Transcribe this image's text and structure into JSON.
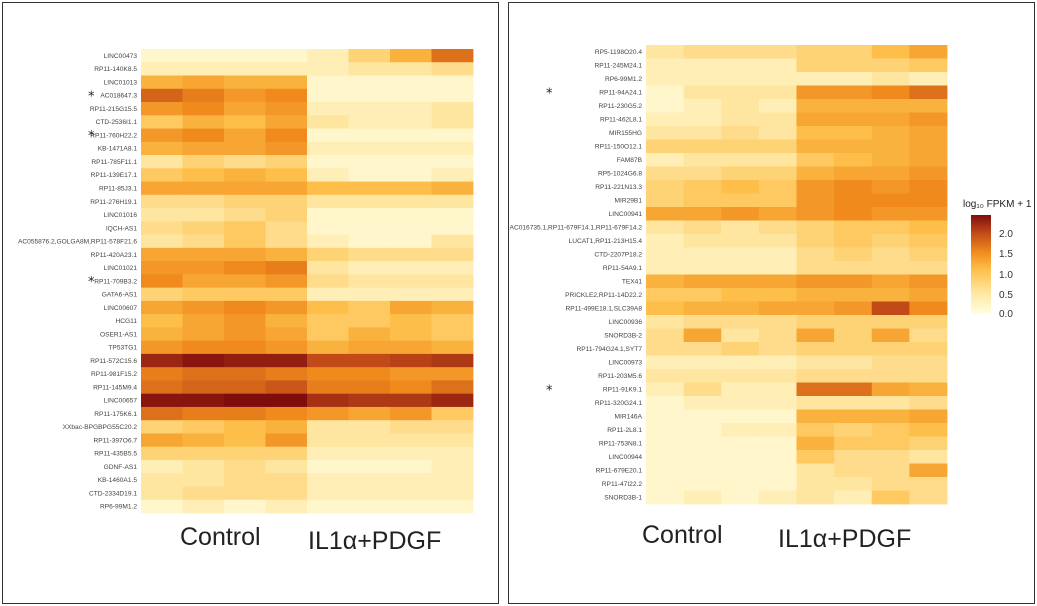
{
  "colors": {
    "low": "#ffffe0",
    "mid": "#fdbf4a",
    "high": "#7f0d0d",
    "border": "#333333"
  },
  "legend": {
    "title": "log₁₀ FPKM + 1",
    "ticks": [
      "2.0",
      "1.5",
      "1.0",
      "0.5",
      "0.0"
    ],
    "tick_values": [
      2.0,
      1.5,
      1.0,
      0.5,
      0.0
    ]
  },
  "left_groups": {
    "control": "Control",
    "treated": "IL1α+PDGF"
  },
  "right_groups": {
    "control": "Control",
    "treated": "IL1α+PDGF"
  },
  "chart_data": [
    {
      "type": "heatmap",
      "title": "",
      "xlabel": "",
      "ylabel": "",
      "value_range": [
        0,
        2.3
      ],
      "columns": 8,
      "column_groups": [
        {
          "name": "Control",
          "columns": [
            1,
            2,
            3,
            4
          ]
        },
        {
          "name": "IL1α+PDGF",
          "columns": [
            5,
            6,
            7,
            8
          ]
        }
      ],
      "rows": [
        {
          "label": "LINC00473",
          "star": false,
          "values": [
            0.1,
            0.1,
            0.1,
            0.1,
            0.2,
            0.5,
            0.8,
            1.3
          ]
        },
        {
          "label": "RP11-140K8.5",
          "star": false,
          "values": [
            0.2,
            0.2,
            0.2,
            0.2,
            0.2,
            0.3,
            0.3,
            0.4
          ]
        },
        {
          "label": "LINC01013",
          "star": false,
          "values": [
            0.8,
            0.9,
            0.8,
            0.8,
            0.1,
            0.1,
            0.1,
            0.1
          ]
        },
        {
          "label": "AC018647.3",
          "star": true,
          "values": [
            1.4,
            1.2,
            1.0,
            1.1,
            0.1,
            0.1,
            0.1,
            0.1
          ]
        },
        {
          "label": "RP11-215G15.5",
          "star": false,
          "values": [
            1.0,
            1.1,
            0.9,
            1.0,
            0.2,
            0.2,
            0.2,
            0.3
          ]
        },
        {
          "label": "CTD-2536I1.1",
          "star": false,
          "values": [
            0.6,
            0.8,
            0.7,
            0.9,
            0.3,
            0.2,
            0.2,
            0.3
          ]
        },
        {
          "label": "RP11-760H22.2",
          "star": true,
          "values": [
            1.0,
            1.1,
            0.9,
            1.1,
            0.1,
            0.1,
            0.1,
            0.1
          ]
        },
        {
          "label": "KB-1471A8.1",
          "star": false,
          "values": [
            0.8,
            0.9,
            0.9,
            1.0,
            0.2,
            0.2,
            0.2,
            0.2
          ]
        },
        {
          "label": "RP11-785F11.1",
          "star": false,
          "values": [
            0.3,
            0.5,
            0.4,
            0.5,
            0.1,
            0.1,
            0.1,
            0.1
          ]
        },
        {
          "label": "RP11-139E17.1",
          "star": false,
          "values": [
            0.6,
            0.7,
            0.8,
            0.7,
            0.2,
            0.1,
            0.1,
            0.2
          ]
        },
        {
          "label": "RP11-85J3.1",
          "star": false,
          "values": [
            0.9,
            0.9,
            0.9,
            0.9,
            0.7,
            0.7,
            0.7,
            0.8
          ]
        },
        {
          "label": "RP11-276H19.1",
          "star": false,
          "values": [
            0.4,
            0.4,
            0.5,
            0.5,
            0.3,
            0.3,
            0.3,
            0.3
          ]
        },
        {
          "label": "LINC01016",
          "star": false,
          "values": [
            0.3,
            0.3,
            0.4,
            0.5,
            0.1,
            0.1,
            0.1,
            0.1
          ]
        },
        {
          "label": "IQCH-AS1",
          "star": false,
          "values": [
            0.4,
            0.5,
            0.6,
            0.4,
            0.1,
            0.1,
            0.1,
            0.1
          ]
        },
        {
          "label": "AC055876.2,GOLGA8M,RP11-578F21.6",
          "star": false,
          "values": [
            0.3,
            0.4,
            0.6,
            0.4,
            0.2,
            0.1,
            0.1,
            0.3
          ]
        },
        {
          "label": "RP11-420A23.1",
          "star": false,
          "values": [
            0.9,
            0.9,
            0.9,
            0.8,
            0.5,
            0.4,
            0.4,
            0.4
          ]
        },
        {
          "label": "LINC01021",
          "star": false,
          "values": [
            1.0,
            1.0,
            1.1,
            1.2,
            0.3,
            0.2,
            0.2,
            0.2
          ]
        },
        {
          "label": "RP11-709B3.2",
          "star": true,
          "values": [
            1.1,
            0.9,
            0.9,
            1.0,
            0.4,
            0.3,
            0.3,
            0.3
          ]
        },
        {
          "label": "GATA6-AS1",
          "star": false,
          "values": [
            0.5,
            0.6,
            0.6,
            0.6,
            0.2,
            0.2,
            0.2,
            0.2
          ]
        },
        {
          "label": "LINC00607",
          "star": false,
          "values": [
            0.9,
            1.0,
            1.1,
            1.0,
            0.7,
            0.6,
            0.9,
            0.8
          ]
        },
        {
          "label": "HCG11",
          "star": false,
          "values": [
            0.7,
            0.9,
            1.0,
            0.8,
            0.6,
            0.6,
            0.7,
            0.6
          ]
        },
        {
          "label": "OSER1-AS1",
          "star": false,
          "values": [
            0.8,
            0.9,
            1.0,
            0.9,
            0.6,
            0.8,
            0.7,
            0.6
          ]
        },
        {
          "label": "TP53TG1",
          "star": false,
          "values": [
            1.0,
            1.1,
            1.1,
            1.0,
            0.8,
            0.9,
            0.9,
            0.8
          ]
        },
        {
          "label": "RP11-572C15.6",
          "star": false,
          "values": [
            2.0,
            2.2,
            2.1,
            2.1,
            1.6,
            1.6,
            1.7,
            1.8
          ]
        },
        {
          "label": "RP11-981F15.2",
          "star": false,
          "values": [
            1.2,
            1.3,
            1.3,
            1.2,
            1.1,
            1.1,
            1.0,
            1.0
          ]
        },
        {
          "label": "RP11-145M9.4",
          "star": false,
          "values": [
            1.3,
            1.4,
            1.4,
            1.5,
            1.2,
            1.2,
            1.1,
            1.3
          ]
        },
        {
          "label": "LINC00657",
          "star": false,
          "values": [
            2.2,
            2.2,
            2.3,
            2.3,
            1.9,
            1.8,
            1.8,
            2.0
          ]
        },
        {
          "label": "RP11-175K6.1",
          "star": false,
          "values": [
            1.3,
            1.2,
            1.2,
            1.1,
            1.0,
            0.9,
            1.0,
            0.6
          ]
        },
        {
          "label": "XXbac-BPGBPG55C20.2",
          "star": false,
          "values": [
            0.5,
            0.6,
            0.7,
            0.8,
            0.3,
            0.3,
            0.4,
            0.4
          ]
        },
        {
          "label": "RP11-397O6.7",
          "star": false,
          "values": [
            0.9,
            0.8,
            0.7,
            1.0,
            0.3,
            0.3,
            0.3,
            0.3
          ]
        },
        {
          "label": "RP11-435B5.5",
          "star": false,
          "values": [
            0.5,
            0.5,
            0.5,
            0.5,
            0.2,
            0.2,
            0.2,
            0.2
          ]
        },
        {
          "label": "GDNF-AS1",
          "star": false,
          "values": [
            0.2,
            0.3,
            0.4,
            0.3,
            0.1,
            0.1,
            0.1,
            0.2
          ]
        },
        {
          "label": "KB-1460A1.5",
          "star": false,
          "values": [
            0.3,
            0.3,
            0.4,
            0.4,
            0.2,
            0.2,
            0.2,
            0.2
          ]
        },
        {
          "label": "CTD-2334D19.1",
          "star": false,
          "values": [
            0.3,
            0.4,
            0.4,
            0.4,
            0.2,
            0.2,
            0.2,
            0.2
          ]
        },
        {
          "label": "RP6-99M1.2",
          "star": false,
          "values": [
            0.1,
            0.2,
            0.1,
            0.2,
            0.1,
            0.1,
            0.1,
            0.1
          ]
        }
      ]
    },
    {
      "type": "heatmap",
      "title": "",
      "xlabel": "",
      "ylabel": "",
      "value_range": [
        0,
        2.3
      ],
      "columns": 8,
      "column_groups": [
        {
          "name": "Control",
          "columns": [
            1,
            2,
            3,
            4
          ]
        },
        {
          "name": "IL1α+PDGF",
          "columns": [
            5,
            6,
            7,
            8
          ]
        }
      ],
      "legend_title": "log₁₀ FPKM + 1",
      "rows": [
        {
          "label": "RP5-1198O20.4",
          "star": false,
          "values": [
            0.3,
            0.4,
            0.4,
            0.4,
            0.5,
            0.5,
            0.7,
            0.9
          ]
        },
        {
          "label": "RP11-245M24.1",
          "star": false,
          "values": [
            0.2,
            0.2,
            0.2,
            0.2,
            0.5,
            0.5,
            0.5,
            0.6
          ]
        },
        {
          "label": "RP6-99M1.2",
          "star": false,
          "values": [
            0.2,
            0.2,
            0.2,
            0.2,
            0.2,
            0.2,
            0.3,
            0.2
          ]
        },
        {
          "label": "RP11-94A24.1",
          "star": true,
          "values": [
            0.1,
            0.3,
            0.3,
            0.3,
            1.0,
            1.0,
            1.1,
            1.3
          ]
        },
        {
          "label": "RP11-230G5.2",
          "star": false,
          "values": [
            0.1,
            0.2,
            0.3,
            0.2,
            0.8,
            0.8,
            0.8,
            0.8
          ]
        },
        {
          "label": "RP11-462L8.1",
          "star": false,
          "values": [
            0.2,
            0.2,
            0.3,
            0.3,
            0.9,
            0.9,
            0.9,
            1.0
          ]
        },
        {
          "label": "MIR155HG",
          "star": false,
          "values": [
            0.3,
            0.3,
            0.4,
            0.3,
            0.7,
            0.7,
            0.8,
            0.9
          ]
        },
        {
          "label": "RP11-150O12.1",
          "star": false,
          "values": [
            0.5,
            0.5,
            0.5,
            0.5,
            0.8,
            0.8,
            0.8,
            0.9
          ]
        },
        {
          "label": "FAM87B",
          "star": false,
          "values": [
            0.2,
            0.3,
            0.3,
            0.3,
            0.6,
            0.7,
            0.8,
            0.9
          ]
        },
        {
          "label": "RP5-1024G6.8",
          "star": false,
          "values": [
            0.4,
            0.4,
            0.5,
            0.5,
            0.8,
            0.9,
            0.9,
            1.0
          ]
        },
        {
          "label": "RP11-221N13.3",
          "star": false,
          "values": [
            0.5,
            0.6,
            0.7,
            0.6,
            1.0,
            1.1,
            1.0,
            1.1
          ]
        },
        {
          "label": "MIR29B1",
          "star": false,
          "values": [
            0.5,
            0.6,
            0.6,
            0.6,
            1.0,
            1.1,
            1.1,
            1.1
          ]
        },
        {
          "label": "LINC00941",
          "star": false,
          "values": [
            0.9,
            0.9,
            1.0,
            0.9,
            1.0,
            1.1,
            1.0,
            1.0
          ]
        },
        {
          "label": "AC016735.1,RP11-679F14.1,RP11-679F14.2",
          "star": false,
          "values": [
            0.3,
            0.4,
            0.3,
            0.4,
            0.5,
            0.6,
            0.6,
            0.7
          ]
        },
        {
          "label": "LUCAT1,RP11-213H15.4",
          "star": false,
          "values": [
            0.2,
            0.3,
            0.3,
            0.3,
            0.5,
            0.6,
            0.5,
            0.6
          ]
        },
        {
          "label": "CTD-2207P18.2",
          "star": false,
          "values": [
            0.2,
            0.2,
            0.2,
            0.2,
            0.4,
            0.5,
            0.4,
            0.5
          ]
        },
        {
          "label": "RP11-54A9.1",
          "star": false,
          "values": [
            0.2,
            0.2,
            0.2,
            0.2,
            0.4,
            0.4,
            0.4,
            0.4
          ]
        },
        {
          "label": "TEX41",
          "star": false,
          "values": [
            0.8,
            0.9,
            0.9,
            0.9,
            1.0,
            1.0,
            0.9,
            1.0
          ]
        },
        {
          "label": "PRICKLE2,RP11-14D22.2",
          "star": false,
          "values": [
            0.6,
            0.6,
            0.7,
            0.7,
            0.8,
            0.8,
            0.8,
            0.9
          ]
        },
        {
          "label": "RP11-499E18.1,SLC39A8",
          "star": false,
          "values": [
            0.7,
            0.8,
            0.8,
            0.9,
            0.9,
            1.0,
            1.6,
            1.1
          ]
        },
        {
          "label": "LINC00936",
          "star": false,
          "values": [
            0.3,
            0.4,
            0.4,
            0.4,
            0.5,
            0.5,
            0.5,
            0.5
          ]
        },
        {
          "label": "SNORD3B-2",
          "star": false,
          "values": [
            0.4,
            0.9,
            0.3,
            0.4,
            0.9,
            0.5,
            0.9,
            0.4
          ]
        },
        {
          "label": "RP11-794G24.1,SYT7",
          "star": false,
          "values": [
            0.4,
            0.4,
            0.5,
            0.4,
            0.5,
            0.5,
            0.5,
            0.5
          ]
        },
        {
          "label": "LINC00973",
          "star": false,
          "values": [
            0.2,
            0.2,
            0.2,
            0.2,
            0.3,
            0.3,
            0.4,
            0.4
          ]
        },
        {
          "label": "RP11-203M5.6",
          "star": false,
          "values": [
            0.3,
            0.3,
            0.3,
            0.3,
            0.4,
            0.4,
            0.4,
            0.4
          ]
        },
        {
          "label": "RP11-91K9.1",
          "star": true,
          "values": [
            0.2,
            0.4,
            0.2,
            0.2,
            1.3,
            1.3,
            0.9,
            0.8
          ]
        },
        {
          "label": "RP11-320G24.1",
          "star": false,
          "values": [
            0.1,
            0.2,
            0.2,
            0.2,
            0.3,
            0.3,
            0.3,
            0.4
          ]
        },
        {
          "label": "MIR146A",
          "star": false,
          "values": [
            0.1,
            0.1,
            0.1,
            0.1,
            0.8,
            0.8,
            0.8,
            0.9
          ]
        },
        {
          "label": "RP11-2L8.1",
          "star": false,
          "values": [
            0.1,
            0.1,
            0.2,
            0.2,
            0.6,
            0.5,
            0.6,
            0.7
          ]
        },
        {
          "label": "RP11-753N8.1",
          "star": false,
          "values": [
            0.1,
            0.1,
            0.1,
            0.1,
            0.8,
            0.6,
            0.6,
            0.5
          ]
        },
        {
          "label": "LINC00944",
          "star": false,
          "values": [
            0.1,
            0.1,
            0.1,
            0.1,
            0.6,
            0.4,
            0.4,
            0.3
          ]
        },
        {
          "label": "RP11-679E20.1",
          "star": false,
          "values": [
            0.1,
            0.1,
            0.1,
            0.1,
            0.3,
            0.4,
            0.4,
            0.9
          ]
        },
        {
          "label": "RP11-47I22.2",
          "star": false,
          "values": [
            0.1,
            0.1,
            0.1,
            0.1,
            0.3,
            0.3,
            0.4,
            0.4
          ]
        },
        {
          "label": "SNORD3B-1",
          "star": false,
          "values": [
            0.1,
            0.2,
            0.1,
            0.2,
            0.3,
            0.2,
            0.6,
            0.4
          ]
        }
      ]
    }
  ]
}
